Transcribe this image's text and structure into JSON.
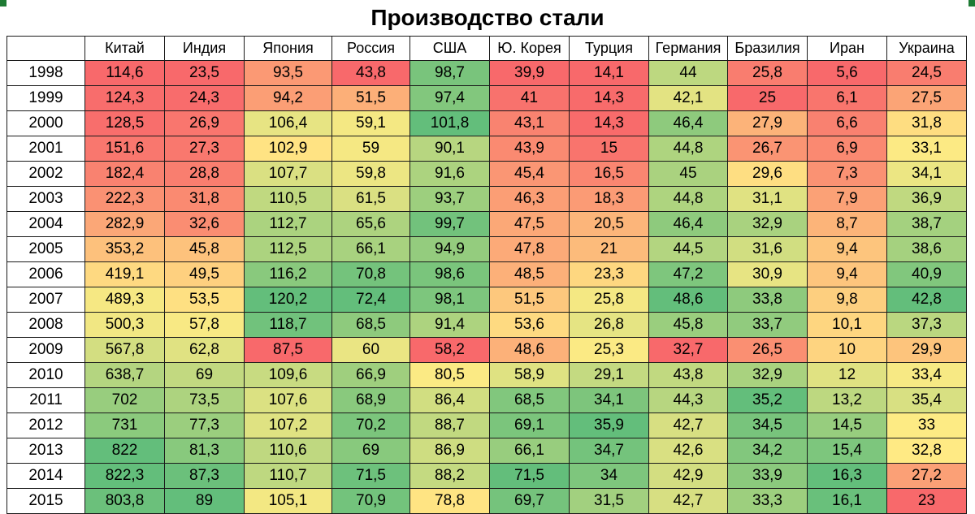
{
  "chart_data": {
    "type": "table",
    "title": "Производство стали",
    "columns": [
      "Китай",
      "Индия",
      "Япония",
      "Россия",
      "США",
      "Ю. Корея",
      "Турция",
      "Германия",
      "Бразилия",
      "Иран",
      "Украина"
    ],
    "rows": [
      {
        "year": "1998",
        "values": [
          "114,6",
          "23,5",
          "93,5",
          "43,8",
          "98,7",
          "39,9",
          "14,1",
          "44",
          "25,8",
          "5,6",
          "24,5"
        ]
      },
      {
        "year": "1999",
        "values": [
          "124,3",
          "24,3",
          "94,2",
          "51,5",
          "97,4",
          "41",
          "14,3",
          "42,1",
          "25",
          "6,1",
          "27,5"
        ]
      },
      {
        "year": "2000",
        "values": [
          "128,5",
          "26,9",
          "106,4",
          "59,1",
          "101,8",
          "43,1",
          "14,3",
          "46,4",
          "27,9",
          "6,6",
          "31,8"
        ]
      },
      {
        "year": "2001",
        "values": [
          "151,6",
          "27,3",
          "102,9",
          "59",
          "90,1",
          "43,9",
          "15",
          "44,8",
          "26,7",
          "6,9",
          "33,1"
        ]
      },
      {
        "year": "2002",
        "values": [
          "182,4",
          "28,8",
          "107,7",
          "59,8",
          "91,6",
          "45,4",
          "16,5",
          "45",
          "29,6",
          "7,3",
          "34,1"
        ]
      },
      {
        "year": "2003",
        "values": [
          "222,3",
          "31,8",
          "110,5",
          "61,5",
          "93,7",
          "46,3",
          "18,3",
          "44,8",
          "31,1",
          "7,9",
          "36,9"
        ]
      },
      {
        "year": "2004",
        "values": [
          "282,9",
          "32,6",
          "112,7",
          "65,6",
          "99,7",
          "47,5",
          "20,5",
          "46,4",
          "32,9",
          "8,7",
          "38,7"
        ]
      },
      {
        "year": "2005",
        "values": [
          "353,2",
          "45,8",
          "112,5",
          "66,1",
          "94,9",
          "47,8",
          "21",
          "44,5",
          "31,6",
          "9,4",
          "38,6"
        ]
      },
      {
        "year": "2006",
        "values": [
          "419,1",
          "49,5",
          "116,2",
          "70,8",
          "98,6",
          "48,5",
          "23,3",
          "47,2",
          "30,9",
          "9,4",
          "40,9"
        ]
      },
      {
        "year": "2007",
        "values": [
          "489,3",
          "53,5",
          "120,2",
          "72,4",
          "98,1",
          "51,5",
          "25,8",
          "48,6",
          "33,8",
          "9,8",
          "42,8"
        ]
      },
      {
        "year": "2008",
        "values": [
          "500,3",
          "57,8",
          "118,7",
          "68,5",
          "91,4",
          "53,6",
          "26,8",
          "45,8",
          "33,7",
          "10,1",
          "37,3"
        ]
      },
      {
        "year": "2009",
        "values": [
          "567,8",
          "62,8",
          "87,5",
          "60",
          "58,2",
          "48,6",
          "25,3",
          "32,7",
          "26,5",
          "10",
          "29,9"
        ]
      },
      {
        "year": "2010",
        "values": [
          "638,7",
          "69",
          "109,6",
          "66,9",
          "80,5",
          "58,9",
          "29,1",
          "43,8",
          "32,9",
          "12",
          "33,4"
        ]
      },
      {
        "year": "2011",
        "values": [
          "702",
          "73,5",
          "107,6",
          "68,9",
          "86,4",
          "68,5",
          "34,1",
          "44,3",
          "35,2",
          "13,2",
          "35,4"
        ]
      },
      {
        "year": "2012",
        "values": [
          "731",
          "77,3",
          "107,2",
          "70,2",
          "88,7",
          "69,1",
          "35,9",
          "42,7",
          "34,5",
          "14,5",
          "33"
        ]
      },
      {
        "year": "2013",
        "values": [
          "822",
          "81,3",
          "110,6",
          "69",
          "86,9",
          "66,1",
          "34,7",
          "42,6",
          "34,2",
          "15,4",
          "32,8"
        ]
      },
      {
        "year": "2014",
        "values": [
          "822,3",
          "87,3",
          "110,7",
          "71,5",
          "88,2",
          "71,5",
          "34",
          "42,9",
          "33,9",
          "16,3",
          "27,2"
        ]
      },
      {
        "year": "2015",
        "values": [
          "803,8",
          "89",
          "105,1",
          "70,9",
          "78,8",
          "69,7",
          "31,5",
          "42,7",
          "33,3",
          "16,1",
          "23"
        ]
      }
    ],
    "color_scale": {
      "low": "#f8696b",
      "mid": "#ffeb84",
      "high": "#63be7b",
      "scope": "per-column"
    }
  }
}
